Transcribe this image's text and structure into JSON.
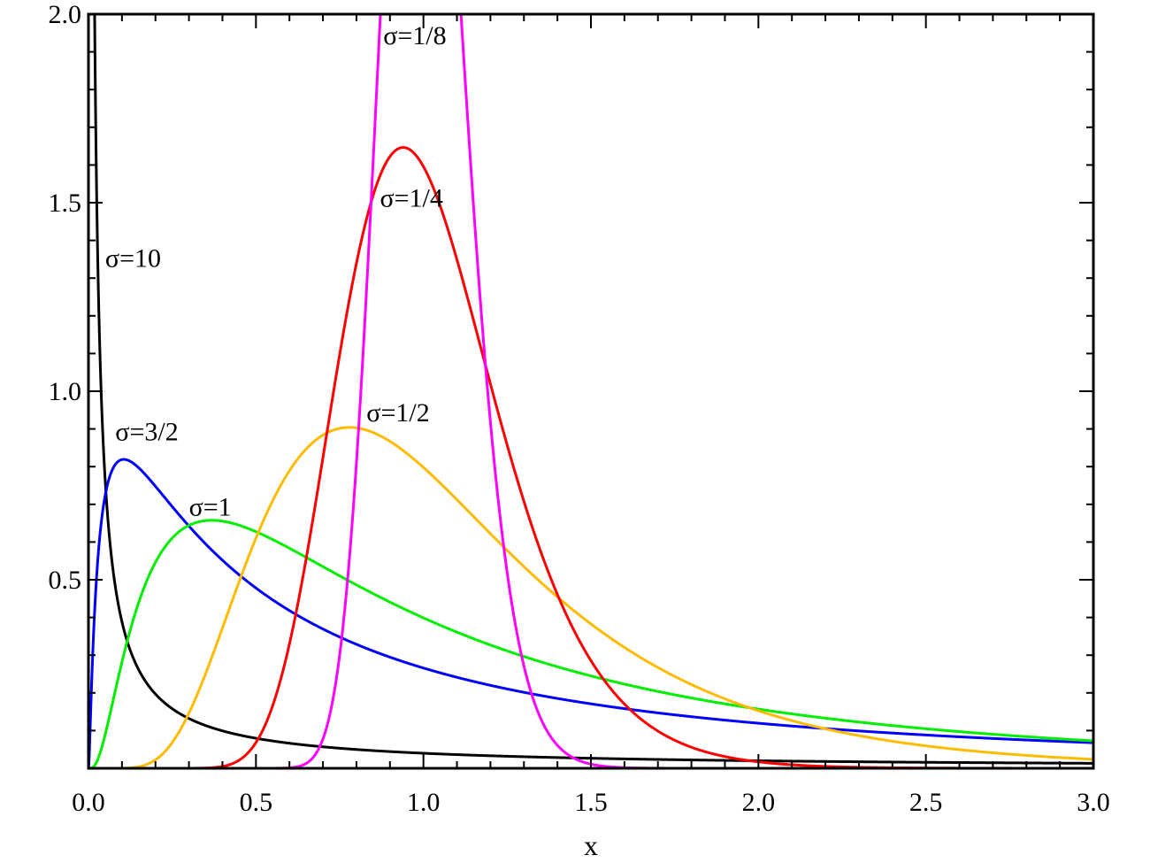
{
  "chart_data": {
    "type": "line",
    "title": "",
    "xlabel": "x",
    "ylabel": "",
    "xlim": [
      0,
      3
    ],
    "ylim": [
      0,
      2
    ],
    "grid": false,
    "legend": "none",
    "x_ticks": [
      {
        "value": 0.0,
        "label": "0.0"
      },
      {
        "value": 0.5,
        "label": "0.5"
      },
      {
        "value": 1.0,
        "label": "1.0"
      },
      {
        "value": 1.5,
        "label": "1.5"
      },
      {
        "value": 2.0,
        "label": "2.0"
      },
      {
        "value": 2.5,
        "label": "2.5"
      },
      {
        "value": 3.0,
        "label": "3.0"
      }
    ],
    "y_ticks": [
      {
        "value": 0.5,
        "label": "0.5"
      },
      {
        "value": 1.0,
        "label": "1.0"
      },
      {
        "value": 1.5,
        "label": "1.5"
      },
      {
        "value": 2.0,
        "label": "2.0"
      }
    ],
    "series": [
      {
        "label": "σ=10",
        "sigma": 10,
        "mu": 0,
        "color": "#000000",
        "label_at": [
          0.05,
          1.33
        ]
      },
      {
        "label": "σ=3/2",
        "sigma": 1.5,
        "mu": 0,
        "color": "#0000ff",
        "label_at": [
          0.08,
          0.87
        ]
      },
      {
        "label": "σ=1",
        "sigma": 1,
        "mu": 0,
        "color": "#00ee00",
        "label_at": [
          0.3,
          0.67
        ]
      },
      {
        "label": "σ=1/2",
        "sigma": 0.5,
        "mu": 0,
        "color": "#ffbb00",
        "label_at": [
          0.83,
          0.92
        ]
      },
      {
        "label": "σ=1/4",
        "sigma": 0.25,
        "mu": 0,
        "color": "#ff0000",
        "label_at": [
          0.87,
          1.49
        ]
      },
      {
        "label": "σ=1/8",
        "sigma": 0.125,
        "mu": 0,
        "color": "#ff00ff",
        "label_at": [
          0.88,
          1.92
        ]
      }
    ]
  }
}
